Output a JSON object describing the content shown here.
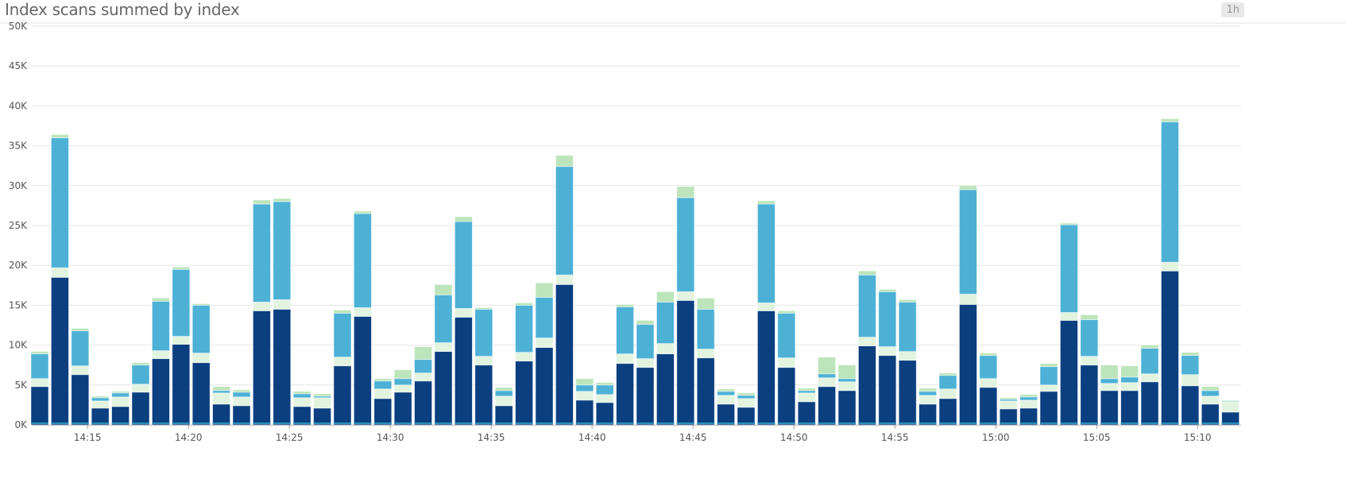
{
  "header": {
    "title": "Index scans summed by index",
    "timeframe_badge": "1h"
  },
  "chart_data": {
    "type": "bar",
    "stacked": true,
    "title": "Index scans summed by index",
    "xlabel": "",
    "ylabel": "",
    "ylim": [
      0,
      50000
    ],
    "grid": true,
    "yticks": [
      0,
      5000,
      10000,
      15000,
      20000,
      25000,
      30000,
      35000,
      40000,
      45000,
      50000
    ],
    "ytick_labels": [
      "0K",
      "5K",
      "10K",
      "15K",
      "20K",
      "25K",
      "30K",
      "35K",
      "40K",
      "45K",
      "50K"
    ],
    "xtick_labels": [
      "14:15",
      "14:20",
      "14:25",
      "14:30",
      "14:35",
      "14:40",
      "14:45",
      "14:50",
      "14:55",
      "15:00",
      "15:05",
      "15:10"
    ],
    "categories": [
      "14:12",
      "14:13",
      "14:14",
      "14:15",
      "14:16",
      "14:17",
      "14:18",
      "14:19",
      "14:20",
      "14:21",
      "14:22",
      "14:23",
      "14:24",
      "14:25",
      "14:26",
      "14:27",
      "14:28",
      "14:29",
      "14:30",
      "14:31",
      "14:32",
      "14:33",
      "14:34",
      "14:35",
      "14:36",
      "14:37",
      "14:38",
      "14:39",
      "14:40",
      "14:41",
      "14:42",
      "14:43",
      "14:44",
      "14:45",
      "14:46",
      "14:47",
      "14:48",
      "14:49",
      "14:50",
      "14:51",
      "14:52",
      "14:53",
      "14:54",
      "14:55",
      "14:56",
      "14:57",
      "14:58",
      "14:59",
      "15:00",
      "15:01",
      "15:02",
      "15:03",
      "15:04",
      "15:05",
      "15:06",
      "15:07",
      "15:08",
      "15:09",
      "15:10",
      "15:11"
    ],
    "series": [
      {
        "color": "#0b3f80",
        "values": [
          4800,
          18500,
          6300,
          2100,
          2300,
          4100,
          8300,
          10100,
          7800,
          2600,
          2400,
          14300,
          14500,
          2300,
          2100,
          7400,
          13600,
          3300,
          4100,
          5500,
          9200,
          13500,
          7500,
          2400,
          8000,
          9700,
          17600,
          3100,
          2800,
          7700,
          7200,
          8900,
          15600,
          8400,
          2600,
          2200,
          14300,
          7200,
          2900,
          4800,
          4300,
          9900,
          8700,
          8100,
          2600,
          3300,
          15100,
          4700,
          2000,
          2100,
          4200,
          13100,
          7500,
          4300,
          4300,
          5400,
          19300,
          4900,
          2600,
          1600
        ]
      },
      {
        "color": "#e2f4df",
        "values": [
          1000,
          1200,
          1100,
          900,
          1200,
          1000,
          1000,
          1000,
          1200,
          1400,
          1100,
          1100,
          1200,
          1100,
          1300,
          1100,
          1100,
          1200,
          900,
          1000,
          1100,
          1100,
          1100,
          1200,
          1100,
          1200,
          1200,
          1100,
          1000,
          1200,
          1100,
          1300,
          1100,
          1100,
          1100,
          1100,
          1000,
          1200,
          1100,
          1100,
          1100,
          1100,
          1100,
          1100,
          1100,
          1200,
          1300,
          1100,
          1000,
          1000,
          800,
          1000,
          1100,
          900,
          1000,
          1000,
          1100,
          1400,
          1000,
          1300
        ]
      },
      {
        "color": "#4db1d6",
        "values": [
          3100,
          16300,
          4400,
          400,
          500,
          2400,
          6200,
          8400,
          6000,
          300,
          600,
          12300,
          12300,
          500,
          200,
          5500,
          11800,
          1000,
          800,
          1700,
          6000,
          10900,
          5900,
          700,
          5900,
          5100,
          13600,
          800,
          1200,
          5900,
          4300,
          5200,
          11800,
          5000,
          500,
          400,
          12400,
          5600,
          300,
          500,
          400,
          7800,
          6900,
          6200,
          500,
          1700,
          13100,
          2900,
          200,
          400,
          2300,
          11000,
          4600,
          600,
          700,
          3200,
          17600,
          2400,
          700,
          100
        ]
      },
      {
        "color": "#bde5bb",
        "values": [
          300,
          400,
          300,
          200,
          200,
          300,
          400,
          300,
          200,
          500,
          300,
          500,
          400,
          300,
          300,
          400,
          300,
          300,
          1100,
          1600,
          1300,
          600,
          200,
          400,
          300,
          1800,
          1400,
          800,
          300,
          300,
          500,
          1300,
          1400,
          1400,
          300,
          300,
          400,
          300,
          300,
          2100,
          1700,
          500,
          300,
          300,
          400,
          300,
          500,
          300,
          200,
          300,
          400,
          200,
          600,
          1700,
          1400,
          400,
          400,
          400,
          500,
          100
        ]
      }
    ]
  }
}
